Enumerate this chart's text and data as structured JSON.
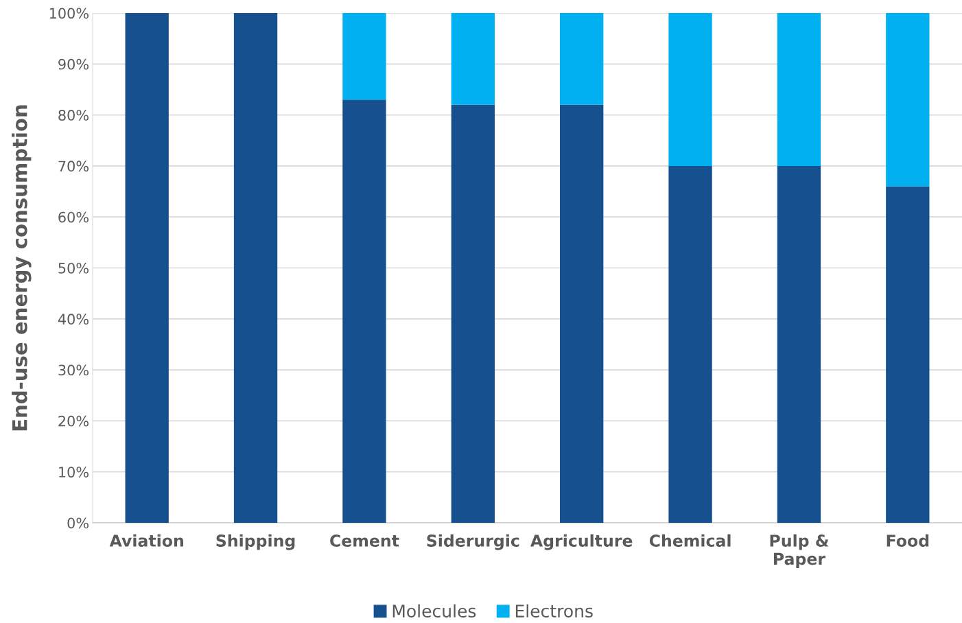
{
  "chart_data": {
    "type": "bar",
    "stacked": true,
    "ylabel": "End-use energy consumption",
    "categories": [
      "Aviation",
      "Shipping",
      "Cement",
      "Siderurgic",
      "Agriculture",
      "Chemical",
      "Pulp & Paper",
      "Food"
    ],
    "series": [
      {
        "name": "Molecules",
        "color": "#17508f",
        "values": [
          100,
          100,
          83,
          82,
          82,
          70,
          70,
          66
        ]
      },
      {
        "name": "Electrons",
        "color": "#00b0f0",
        "values": [
          0,
          0,
          17,
          18,
          18,
          30,
          30,
          34
        ]
      }
    ],
    "ylim": [
      0,
      100
    ],
    "yticks": [
      {
        "value": 0,
        "label": "0%"
      },
      {
        "value": 10,
        "label": "10%"
      },
      {
        "value": 20,
        "label": "20%"
      },
      {
        "value": 30,
        "label": "30%"
      },
      {
        "value": 40,
        "label": "40%"
      },
      {
        "value": 50,
        "label": "50%"
      },
      {
        "value": 60,
        "label": "60%"
      },
      {
        "value": 70,
        "label": "70%"
      },
      {
        "value": 80,
        "label": "80%"
      },
      {
        "value": 90,
        "label": "90%"
      },
      {
        "value": 100,
        "label": "100%"
      }
    ],
    "grid": "y",
    "legend": "bottom"
  }
}
